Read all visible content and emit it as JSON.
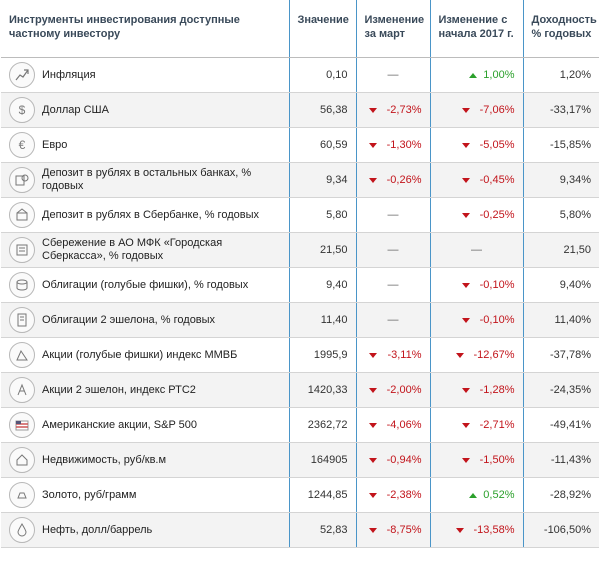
{
  "header": {
    "col_name": "Инструменты инвестирования доступные частному инвестору",
    "col_value": "Значение",
    "col_march": "Изменение за март",
    "col_ytd": "Изменение с начала 2017 г.",
    "col_yield": "Доходность % годовых"
  },
  "colors": {
    "up": "#2ba02b",
    "down": "#c2141b",
    "separator": "#4a95c8"
  },
  "rows": [
    {
      "icon": "inflation-trend-icon",
      "name": "Инфляция",
      "value": "0,10",
      "march": "—",
      "march_dir": "none",
      "ytd": "1,00%",
      "ytd_dir": "up",
      "yield": "1,20%"
    },
    {
      "icon": "dollar-icon",
      "name": "Доллар США",
      "value": "56,38",
      "march": "-2,73%",
      "march_dir": "down",
      "ytd": "-7,06%",
      "ytd_dir": "down",
      "yield": "-33,17%"
    },
    {
      "icon": "euro-icon",
      "name": "Евро",
      "value": "60,59",
      "march": "-1,30%",
      "march_dir": "down",
      "ytd": "-5,05%",
      "ytd_dir": "down",
      "yield": "-15,85%"
    },
    {
      "icon": "deposit-icon",
      "name": "Депозит в рублях в остальных банках, % годовых",
      "value": "9,34",
      "march": "-0,26%",
      "march_dir": "down",
      "ytd": "-0,45%",
      "ytd_dir": "down",
      "yield": "9,34%"
    },
    {
      "icon": "bank-deposit-icon",
      "name": "Депозит в рублях в Сбербанке, % годовых",
      "value": "5,80",
      "march": "—",
      "march_dir": "none",
      "ytd": "-0,25%",
      "ytd_dir": "down",
      "yield": "5,80%"
    },
    {
      "icon": "savings-icon",
      "name": "Сбережение в АО МФК «Городская Сберкасса», % годовых",
      "value": "21,50",
      "march": "—",
      "march_dir": "none",
      "ytd": "—",
      "ytd_dir": "none",
      "yield": "21,50"
    },
    {
      "icon": "coins-stack-icon",
      "name": "Облигации (голубые фишки), % годовых",
      "value": "9,40",
      "march": "—",
      "march_dir": "none",
      "ytd": "-0,10%",
      "ytd_dir": "down",
      "yield": "9,40%"
    },
    {
      "icon": "bond-document-icon",
      "name": "Облигации 2 эшелона, % годовых",
      "value": "11,40",
      "march": "—",
      "march_dir": "none",
      "ytd": "-0,10%",
      "ytd_dir": "down",
      "yield": "11,40%"
    },
    {
      "icon": "stock-chart-icon",
      "name": "Акции (голубые фишки) индекс ММВБ",
      "value": "1995,9",
      "march": "-3,11%",
      "march_dir": "down",
      "ytd": "-12,67%",
      "ytd_dir": "down",
      "yield": "-37,78%"
    },
    {
      "icon": "stock-2-icon",
      "name": "Акции 2 эшелон, индекс РТС2",
      "value": "1420,33",
      "march": "-2,00%",
      "march_dir": "down",
      "ytd": "-1,28%",
      "ytd_dir": "down",
      "yield": "-24,35%"
    },
    {
      "icon": "us-flag-icon",
      "name": "Американские акции, S&P 500",
      "value": "2362,72",
      "march": "-4,06%",
      "march_dir": "down",
      "ytd": "-2,71%",
      "ytd_dir": "down",
      "yield": "-49,41%"
    },
    {
      "icon": "house-icon",
      "name": "Недвижимость, руб/кв.м",
      "value": "164905",
      "march": "-0,94%",
      "march_dir": "down",
      "ytd": "-1,50%",
      "ytd_dir": "down",
      "yield": "-11,43%"
    },
    {
      "icon": "gold-bar-icon",
      "name": "Золото, руб/грамм",
      "value": "1244,85",
      "march": "-2,38%",
      "march_dir": "down",
      "ytd": "0,52%",
      "ytd_dir": "up",
      "yield": "-28,92%"
    },
    {
      "icon": "oil-drop-icon",
      "name": "Нефть, долл/баррель",
      "value": "52,83",
      "march": "-8,75%",
      "march_dir": "down",
      "ytd": "-13,58%",
      "ytd_dir": "down",
      "yield": "-106,50%"
    }
  ]
}
